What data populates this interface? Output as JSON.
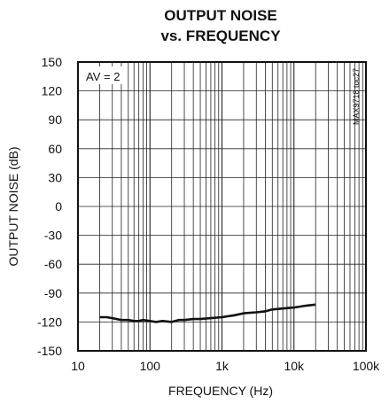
{
  "chart_data": {
    "type": "line",
    "title_line1": "OUTPUT NOISE",
    "title_line2": "vs. FREQUENCY",
    "xlabel": "FREQUENCY (Hz)",
    "ylabel": "OUTPUT NOISE (dB)",
    "x_scale": "log",
    "xlim": [
      10,
      100000
    ],
    "ylim": [
      -150,
      150
    ],
    "x_tick_labels": [
      "10",
      "100",
      "1k",
      "10k",
      "100k"
    ],
    "y_tick_labels": [
      "150",
      "120",
      "90",
      "60",
      "30",
      "0",
      "-30",
      "-60",
      "-90",
      "-120",
      "-150"
    ],
    "annotation": "AV = 2",
    "side_label": "MAX9718 toc27",
    "grid": true,
    "series": [
      {
        "color": "#111111",
        "x": [
          20,
          25,
          30,
          40,
          50,
          60,
          70,
          80,
          100,
          120,
          150,
          200,
          250,
          300,
          400,
          500,
          700,
          1000,
          1500,
          2000,
          3000,
          4000,
          5000,
          7000,
          10000,
          15000,
          20000
        ],
        "y": [
          -115,
          -115,
          -116,
          -118,
          -118,
          -119,
          -119,
          -118,
          -119,
          -120,
          -119,
          -120,
          -118,
          -118,
          -117,
          -117,
          -116,
          -115,
          -113,
          -111,
          -110,
          -109,
          -107,
          -106,
          -105,
          -103,
          -102
        ]
      }
    ]
  }
}
